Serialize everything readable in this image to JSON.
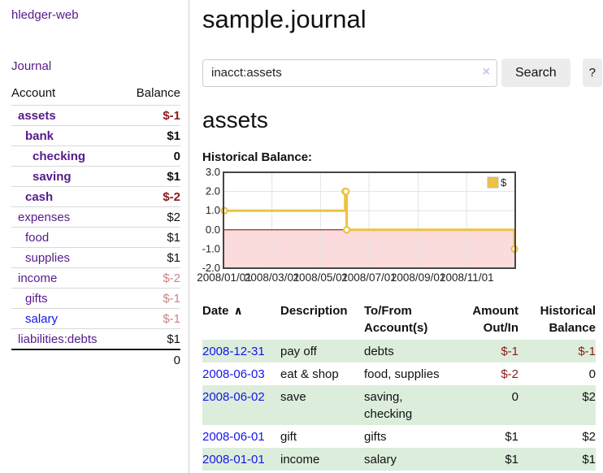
{
  "sidebar": {
    "app_title": "hledger-web",
    "journal_label": "Journal",
    "accounts": {
      "headers": {
        "account": "Account",
        "balance": "Balance"
      },
      "rows": [
        {
          "name": "assets",
          "balance": "$-1"
        },
        {
          "name": "bank",
          "balance": "$1"
        },
        {
          "name": "checking",
          "balance": "0"
        },
        {
          "name": "saving",
          "balance": "$1"
        },
        {
          "name": "cash",
          "balance": "$-2"
        },
        {
          "name": "expenses",
          "balance": "$2"
        },
        {
          "name": "food",
          "balance": "$1"
        },
        {
          "name": "supplies",
          "balance": "$1"
        },
        {
          "name": "income",
          "balance": "$-2"
        },
        {
          "name": "gifts",
          "balance": "$-1"
        },
        {
          "name": "salary",
          "balance": "$-1"
        },
        {
          "name": "liabilities:debts",
          "balance": "$1"
        }
      ],
      "total": "0"
    }
  },
  "header": {
    "title": "sample.journal"
  },
  "search": {
    "value": "inacct:assets",
    "clear_icon": "×",
    "button_label": "Search",
    "help_label": "?"
  },
  "account_page": {
    "heading": "assets",
    "chart_label": "Historical Balance:"
  },
  "chart_data": {
    "type": "line",
    "style": "steps",
    "title": "Historical Balance:",
    "legend": {
      "label": "$",
      "position": "top-right"
    },
    "series": [
      {
        "name": "$",
        "color": "#edc240",
        "points": [
          {
            "date": "2008/01/01",
            "day": 0,
            "value": 1
          },
          {
            "date": "2008/06/01",
            "day": 152,
            "value": 2
          },
          {
            "date": "2008/06/02",
            "day": 153,
            "value": 2
          },
          {
            "date": "2008/06/03",
            "day": 154,
            "value": 0
          },
          {
            "date": "2008/12/31",
            "day": 365,
            "value": -1
          }
        ]
      }
    ],
    "ylim": [
      -2,
      3
    ],
    "yticks": [
      {
        "label": "3.0",
        "value": 3
      },
      {
        "label": "2.0",
        "value": 2
      },
      {
        "label": "1.0",
        "value": 1
      },
      {
        "label": "0.0",
        "value": 0
      },
      {
        "label": "-1.0",
        "value": -1
      },
      {
        "label": "-2.0",
        "value": -2
      }
    ],
    "xticks": [
      {
        "label": "2008/01/01",
        "day": 0
      },
      {
        "label": "2008/03/01",
        "day": 60
      },
      {
        "label": "2008/05/01",
        "day": 121
      },
      {
        "label": "2008/07/01",
        "day": 182
      },
      {
        "label": "2008/09/01",
        "day": 244
      },
      {
        "label": "2008/11/01",
        "day": 305
      }
    ],
    "xrange_days": [
      0,
      365
    ],
    "grid": true,
    "colors": {
      "grid": "#e3e3e3",
      "border": "#454545",
      "zero_line": "#8b0000",
      "below_zero_fill": "#fbdbdb",
      "marker_fill": "#ffffff",
      "legend_box_fill": "#edc240",
      "legend_box_border": "#bbbbbb"
    }
  },
  "register": {
    "headers": {
      "date": "Date",
      "sort_icon": "∧",
      "description": "Description",
      "accounts": "To/From Account(s)",
      "amount": "Amount Out/In",
      "balance": "Historical Balance"
    },
    "rows": [
      {
        "date": "2008-12-31",
        "description": "pay off",
        "accounts": "debts",
        "amount": "$-1",
        "balance": "$-1"
      },
      {
        "date": "2008-06-03",
        "description": "eat & shop",
        "accounts": "food, supplies",
        "amount": "$-2",
        "balance": "0"
      },
      {
        "date": "2008-06-02",
        "description": "save",
        "accounts": "saving, checking",
        "amount": "0",
        "balance": "$2"
      },
      {
        "date": "2008-06-01",
        "description": "gift",
        "accounts": "gifts",
        "amount": "$1",
        "balance": "$2"
      },
      {
        "date": "2008-01-01",
        "description": "income",
        "accounts": "salary",
        "amount": "$1",
        "balance": "$1"
      }
    ]
  }
}
